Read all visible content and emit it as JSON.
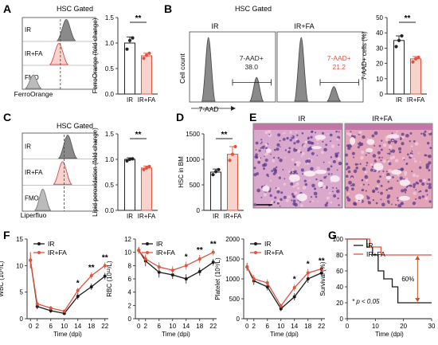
{
  "colors": {
    "ir": "#1a1a1a",
    "irfa": "#e0533e",
    "irfa_fill": "#f7d3cc",
    "hist_fill": "#8a8a8a"
  },
  "panels": {
    "A": {
      "letter": "A",
      "header": "HSC Gated",
      "rows": [
        "IR",
        "IR+FA",
        "FMO"
      ],
      "xlabel": "FerroOrange",
      "bar": {
        "ylabel": "FerroOrange (fold change)",
        "categories": [
          "IR",
          "IR+FA"
        ],
        "sig": "**"
      }
    },
    "B": {
      "letter": "B",
      "header": "HSC Gated",
      "col_ir": "IR",
      "col_irfa": "IR+FA",
      "gate_name": "7-AAD+",
      "value_ir": "38.0",
      "value_irfa": "21.2",
      "ylabel": "Cell count",
      "xlabel": "7-AAD",
      "bar": {
        "ylabel": "7-AAD+ cells (%)",
        "categories": [
          "IR",
          "IR+FA"
        ],
        "sig": "**"
      }
    },
    "C": {
      "letter": "C",
      "header": "HSC Gated",
      "rows": [
        "IR",
        "IR+FA",
        "FMO"
      ],
      "xlabel": "Liperfluo",
      "bar": {
        "ylabel": "Lipid peroxidation (fold change)",
        "categories": [
          "IR",
          "IR+FA"
        ],
        "sig": "**"
      }
    },
    "D": {
      "letter": "D",
      "bar": {
        "ylabel": "HSC in BM",
        "categories": [
          "IR",
          "IR+FA"
        ],
        "sig": "**"
      }
    },
    "E": {
      "letter": "E",
      "label_ir": "IR",
      "label_irfa": "IR+FA"
    },
    "F": {
      "letter": "F"
    },
    "G": {
      "letter": "G",
      "drop": "60%",
      "pnote": "* p < 0.05"
    }
  },
  "chart_data": [
    {
      "id": "A-bar",
      "type": "bar",
      "categories": [
        "IR",
        "IR+FA"
      ],
      "values": [
        1.0,
        0.75
      ],
      "errors": [
        0.12,
        0.05
      ],
      "points": [
        [
          0.88,
          1.05,
          1.1
        ],
        [
          0.7,
          0.76,
          0.8
        ]
      ],
      "ylabel": "FerroOrange (fold change)",
      "ylim": [
        0,
        1.5
      ],
      "yticks": [
        0.0,
        0.5,
        1.0,
        1.5
      ],
      "tick_labels": [
        "0.0",
        "0.5",
        "1.0",
        "1.5"
      ]
    },
    {
      "id": "B-bar",
      "type": "bar",
      "categories": [
        "IR",
        "IR+FA"
      ],
      "values": [
        35,
        23
      ],
      "errors": [
        3,
        1.5
      ],
      "points": [
        [
          31,
          35,
          38
        ],
        [
          21,
          23,
          24
        ]
      ],
      "ylabel": "7-AAD+ cells (%)",
      "ylim": [
        0,
        50
      ],
      "yticks": [
        0,
        10,
        20,
        30,
        40,
        50
      ],
      "tick_labels": [
        "0",
        "10",
        "20",
        "30",
        "40",
        "50"
      ]
    },
    {
      "id": "C-bar",
      "type": "bar",
      "categories": [
        "IR",
        "IR+FA"
      ],
      "values": [
        1.0,
        0.83
      ],
      "errors": [
        0.03,
        0.04
      ],
      "points": [
        [
          0.97,
          1.0,
          1.01
        ],
        [
          0.8,
          0.83,
          0.86
        ]
      ],
      "ylabel": "Lipid peroxidation (fold change)",
      "ylim": [
        0,
        1.5
      ],
      "yticks": [
        0.0,
        0.5,
        1.0,
        1.5
      ],
      "tick_labels": [
        "0.0",
        "0.5",
        "1.0",
        "1.5"
      ]
    },
    {
      "id": "D-bar",
      "type": "bar",
      "categories": [
        "IR",
        "IR+FA"
      ],
      "values": [
        750,
        1100
      ],
      "errors": [
        60,
        150
      ],
      "points": [
        [
          700,
          760,
          800
        ],
        [
          980,
          1100,
          1250
        ]
      ],
      "ylabel": "HSC in BM",
      "ylim": [
        0,
        1500
      ],
      "yticks": [
        0,
        500,
        1000,
        1500
      ],
      "tick_labels": [
        "0",
        "500",
        "1000",
        "1500"
      ]
    },
    {
      "id": "F-wbc",
      "type": "line",
      "xlabel": "Time (dpi)",
      "ylabel": "WBC (10⁹/L)",
      "x": [
        0,
        2,
        6,
        10,
        14,
        18,
        22
      ],
      "xticks": [
        0,
        2,
        6,
        10,
        14,
        18,
        22
      ],
      "ylim": [
        0,
        15
      ],
      "yticks": [
        0,
        5,
        10,
        15
      ],
      "legend": [
        "IR",
        "IR+FA"
      ],
      "series": [
        {
          "name": "IR",
          "values": [
            11,
            2.3,
            1.5,
            1.0,
            4.2,
            6.0,
            8.0
          ],
          "errors": [
            1.5,
            0.5,
            0.4,
            0.3,
            0.6,
            0.6,
            0.6
          ]
        },
        {
          "name": "IR+FA",
          "values": [
            11,
            2.8,
            2.0,
            1.4,
            5.3,
            8.1,
            10.0
          ],
          "errors": [
            1.5,
            0.5,
            0.4,
            0.3,
            0.5,
            0.6,
            0.6
          ]
        }
      ],
      "stars": [
        {
          "x": 14,
          "label": "*"
        },
        {
          "x": 18,
          "label": "**"
        },
        {
          "x": 22,
          "label": "**"
        }
      ]
    },
    {
      "id": "F-rbc",
      "type": "line",
      "xlabel": "Time (dpi)",
      "ylabel": "RBC (10¹²/L)",
      "x": [
        0,
        2,
        6,
        10,
        14,
        18,
        22
      ],
      "xticks": [
        0,
        2,
        6,
        10,
        14,
        18,
        22
      ],
      "ylim": [
        0,
        12
      ],
      "yticks": [
        0,
        2,
        4,
        6,
        8,
        10,
        12
      ],
      "legend": [
        "IR",
        "IR+FA"
      ],
      "series": [
        {
          "name": "IR",
          "values": [
            10.3,
            8.7,
            7.0,
            6.6,
            6.0,
            7.1,
            8.5
          ],
          "errors": [
            0.5,
            0.8,
            0.8,
            0.6,
            0.7,
            0.6,
            0.5
          ]
        },
        {
          "name": "IR+FA",
          "values": [
            10.3,
            9.0,
            7.8,
            7.3,
            8.0,
            9.0,
            10.0
          ],
          "errors": [
            0.5,
            0.7,
            0.7,
            0.6,
            0.6,
            0.6,
            0.5
          ]
        }
      ],
      "stars": [
        {
          "x": 14,
          "label": "*"
        },
        {
          "x": 18,
          "label": "**"
        },
        {
          "x": 22,
          "label": "**"
        }
      ]
    },
    {
      "id": "F-plt",
      "type": "line",
      "xlabel": "Time (dpi)",
      "ylabel": "Platelet (10⁹/L)",
      "x": [
        0,
        2,
        6,
        10,
        14,
        18,
        22
      ],
      "xticks": [
        0,
        2,
        6,
        10,
        14,
        18,
        22
      ],
      "ylim": [
        0,
        2000
      ],
      "yticks": [
        0,
        500,
        1000,
        1500,
        2000
      ],
      "legend": [
        "IR",
        "IR+FA"
      ],
      "series": [
        {
          "name": "IR",
          "values": [
            1300,
            950,
            800,
            250,
            550,
            1000,
            1150
          ],
          "errors": [
            100,
            100,
            90,
            60,
            90,
            100,
            80
          ]
        },
        {
          "name": "IR+FA",
          "values": [
            1300,
            1000,
            900,
            320,
            780,
            1150,
            1250
          ],
          "errors": [
            100,
            100,
            90,
            60,
            90,
            100,
            80
          ]
        }
      ],
      "stars": [
        {
          "x": 14,
          "label": "*"
        },
        {
          "x": 18,
          "label": "*"
        },
        {
          "x": 22,
          "label": "**"
        }
      ]
    },
    {
      "id": "G-survival",
      "type": "line",
      "xlabel": "Time (dpi)",
      "ylabel": "Survival (%)",
      "xlim": [
        0,
        30
      ],
      "xticks": [
        0,
        10,
        20,
        30
      ],
      "ylim": [
        0,
        100
      ],
      "yticks": [
        0,
        20,
        40,
        60,
        80,
        100
      ],
      "legend": [
        "IR",
        "IR+FA"
      ],
      "series": [
        {
          "name": "IR",
          "steps": [
            [
              0,
              100
            ],
            [
              7,
              90
            ],
            [
              9,
              80
            ],
            [
              11,
              60
            ],
            [
              13,
              50
            ],
            [
              16,
              40
            ],
            [
              18,
              20
            ],
            [
              30,
              20
            ]
          ]
        },
        {
          "name": "IR+FA",
          "steps": [
            [
              0,
              100
            ],
            [
              8,
              90
            ],
            [
              12,
              80
            ],
            [
              30,
              80
            ]
          ]
        }
      ]
    }
  ]
}
